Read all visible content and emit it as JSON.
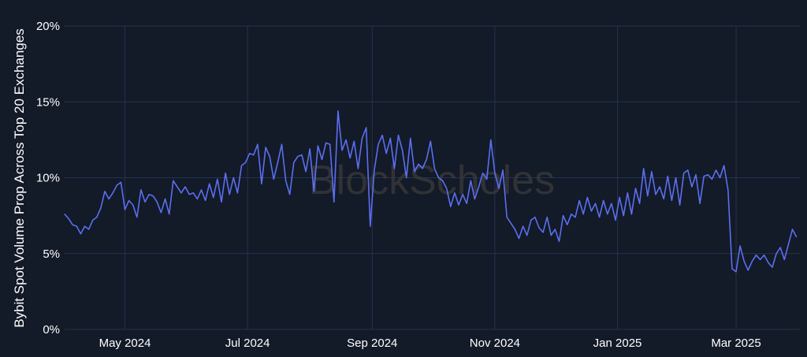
{
  "chart_data": {
    "type": "line",
    "title": "",
    "xlabel": "",
    "ylabel": "Bybit Spot Volume Prop Across Top 20 Exchanges",
    "ylim": [
      0,
      20
    ],
    "y_ticks": [
      0,
      5,
      10,
      15,
      20
    ],
    "y_tick_labels": [
      "0%",
      "5%",
      "10%",
      "15%",
      "20%"
    ],
    "x_ticks": [
      "2024-05-01",
      "2024-07-01",
      "2024-09-01",
      "2024-11-01",
      "2025-01-01",
      "2025-03-01"
    ],
    "x_tick_labels": [
      "May 2024",
      "Jul 2024",
      "Sep 2024",
      "Nov 2024",
      "Jan 2025",
      "Mar 2025"
    ],
    "grid": true,
    "line_color": "#5b6ff0",
    "background_color": "#131a28",
    "grid_color": "#24344f",
    "watermark": "BlockScholes",
    "series": [
      {
        "dates": [
          "2024-04-01",
          "2024-04-03",
          "2024-04-05",
          "2024-04-07",
          "2024-04-09",
          "2024-04-11",
          "2024-04-13",
          "2024-04-15",
          "2024-04-17",
          "2024-04-19",
          "2024-04-21",
          "2024-04-23",
          "2024-04-25",
          "2024-04-27",
          "2024-04-29",
          "2024-05-01",
          "2024-05-03",
          "2024-05-05",
          "2024-05-07",
          "2024-05-09",
          "2024-05-11",
          "2024-05-13",
          "2024-05-15",
          "2024-05-17",
          "2024-05-19",
          "2024-05-21",
          "2024-05-23",
          "2024-05-25",
          "2024-05-27",
          "2024-05-29",
          "2024-05-31",
          "2024-06-02",
          "2024-06-04",
          "2024-06-06",
          "2024-06-08",
          "2024-06-10",
          "2024-06-12",
          "2024-06-14",
          "2024-06-16",
          "2024-06-18",
          "2024-06-20",
          "2024-06-22",
          "2024-06-24",
          "2024-06-26",
          "2024-06-28",
          "2024-06-30",
          "2024-07-02",
          "2024-07-04",
          "2024-07-06",
          "2024-07-08",
          "2024-07-10",
          "2024-07-12",
          "2024-07-14",
          "2024-07-16",
          "2024-07-18",
          "2024-07-20",
          "2024-07-22",
          "2024-07-24",
          "2024-07-26",
          "2024-07-28",
          "2024-07-30",
          "2024-08-01",
          "2024-08-03",
          "2024-08-05",
          "2024-08-07",
          "2024-08-09",
          "2024-08-11",
          "2024-08-13",
          "2024-08-15",
          "2024-08-17",
          "2024-08-19",
          "2024-08-21",
          "2024-08-23",
          "2024-08-25",
          "2024-08-27",
          "2024-08-29",
          "2024-08-31",
          "2024-09-02",
          "2024-09-04",
          "2024-09-06",
          "2024-09-08",
          "2024-09-10",
          "2024-09-12",
          "2024-09-14",
          "2024-09-16",
          "2024-09-18",
          "2024-09-20",
          "2024-09-22",
          "2024-09-24",
          "2024-09-26",
          "2024-09-28",
          "2024-09-30",
          "2024-10-02",
          "2024-10-04",
          "2024-10-06",
          "2024-10-08",
          "2024-10-10",
          "2024-10-12",
          "2024-10-14",
          "2024-10-16",
          "2024-10-18",
          "2024-10-20",
          "2024-10-22",
          "2024-10-24",
          "2024-10-26",
          "2024-10-28",
          "2024-10-30",
          "2024-11-01",
          "2024-11-03",
          "2024-11-05",
          "2024-11-07",
          "2024-11-09",
          "2024-11-11",
          "2024-11-13",
          "2024-11-15",
          "2024-11-17",
          "2024-11-19",
          "2024-11-21",
          "2024-11-23",
          "2024-11-25",
          "2024-11-27",
          "2024-11-29",
          "2024-12-01",
          "2024-12-03",
          "2024-12-05",
          "2024-12-07",
          "2024-12-09",
          "2024-12-11",
          "2024-12-13",
          "2024-12-15",
          "2024-12-17",
          "2024-12-19",
          "2024-12-21",
          "2024-12-23",
          "2024-12-25",
          "2024-12-27",
          "2024-12-29",
          "2024-12-31",
          "2025-01-02",
          "2025-01-04",
          "2025-01-06",
          "2025-01-08",
          "2025-01-10",
          "2025-01-12",
          "2025-01-14",
          "2025-01-16",
          "2025-01-18",
          "2025-01-20",
          "2025-01-22",
          "2025-01-24",
          "2025-01-26",
          "2025-01-28",
          "2025-01-30",
          "2025-02-01",
          "2025-02-03",
          "2025-02-05",
          "2025-02-07",
          "2025-02-09",
          "2025-02-11",
          "2025-02-13",
          "2025-02-15",
          "2025-02-17",
          "2025-02-19",
          "2025-02-21",
          "2025-02-23",
          "2025-02-25",
          "2025-02-27",
          "2025-03-01",
          "2025-03-03",
          "2025-03-05",
          "2025-03-07",
          "2025-03-09",
          "2025-03-11",
          "2025-03-13",
          "2025-03-15",
          "2025-03-17",
          "2025-03-19",
          "2025-03-21",
          "2025-03-23",
          "2025-03-25",
          "2025-03-27",
          "2025-03-29",
          "2025-03-31"
        ],
        "values": [
          7.6,
          7.3,
          6.9,
          6.8,
          6.3,
          6.8,
          6.6,
          7.2,
          7.4,
          8.0,
          9.1,
          8.6,
          9.0,
          9.5,
          9.7,
          7.9,
          8.5,
          8.2,
          7.4,
          9.2,
          8.4,
          8.9,
          8.8,
          8.4,
          7.7,
          8.6,
          7.6,
          9.8,
          9.4,
          9.0,
          9.4,
          8.9,
          9.0,
          8.6,
          9.2,
          8.5,
          9.6,
          8.7,
          9.9,
          8.4,
          10.3,
          8.9,
          10.0,
          9.0,
          10.8,
          11.0,
          11.6,
          11.5,
          12.2,
          9.6,
          12.0,
          11.4,
          9.9,
          11.0,
          12.2,
          9.8,
          8.9,
          11.0,
          11.4,
          11.5,
          10.4,
          11.9,
          9.1,
          12.1,
          11.2,
          12.3,
          12.2,
          8.4,
          14.4,
          11.8,
          12.5,
          11.3,
          12.4,
          10.6,
          12.6,
          13.3,
          6.8,
          10.5,
          12.2,
          12.8,
          11.6,
          12.6,
          10.6,
          12.8,
          11.8,
          10.0,
          12.6,
          10.4,
          10.9,
          10.6,
          11.2,
          12.4,
          10.6,
          10.0,
          9.8,
          9.3,
          8.1,
          9.0,
          8.2,
          8.9,
          8.3,
          9.8,
          8.6,
          9.4,
          10.3,
          9.9,
          12.5,
          10.3,
          9.3,
          10.5,
          7.4,
          7.0,
          6.6,
          6.0,
          6.8,
          6.2,
          7.2,
          7.4,
          6.7,
          6.4,
          7.4,
          6.2,
          6.6,
          5.8,
          7.5,
          6.9,
          7.6,
          7.4,
          8.5,
          7.6,
          8.7,
          7.8,
          8.3,
          7.4,
          8.5,
          7.6,
          8.3,
          7.2,
          8.7,
          7.5,
          9.0,
          7.6,
          9.3,
          8.3,
          10.6,
          8.8,
          10.4,
          8.9,
          9.4,
          8.6,
          10.1,
          8.5,
          10.0,
          8.2,
          10.3,
          10.5,
          9.4,
          10.2,
          8.3,
          10.1,
          10.2,
          9.9,
          10.5,
          10.0,
          10.8,
          9.2,
          4.0,
          3.8,
          5.5,
          4.5,
          3.9,
          4.5,
          4.9,
          4.6,
          4.9,
          4.4,
          4.1,
          5.0,
          5.4,
          4.6,
          5.6,
          6.6,
          6.1
        ]
      }
    ]
  }
}
